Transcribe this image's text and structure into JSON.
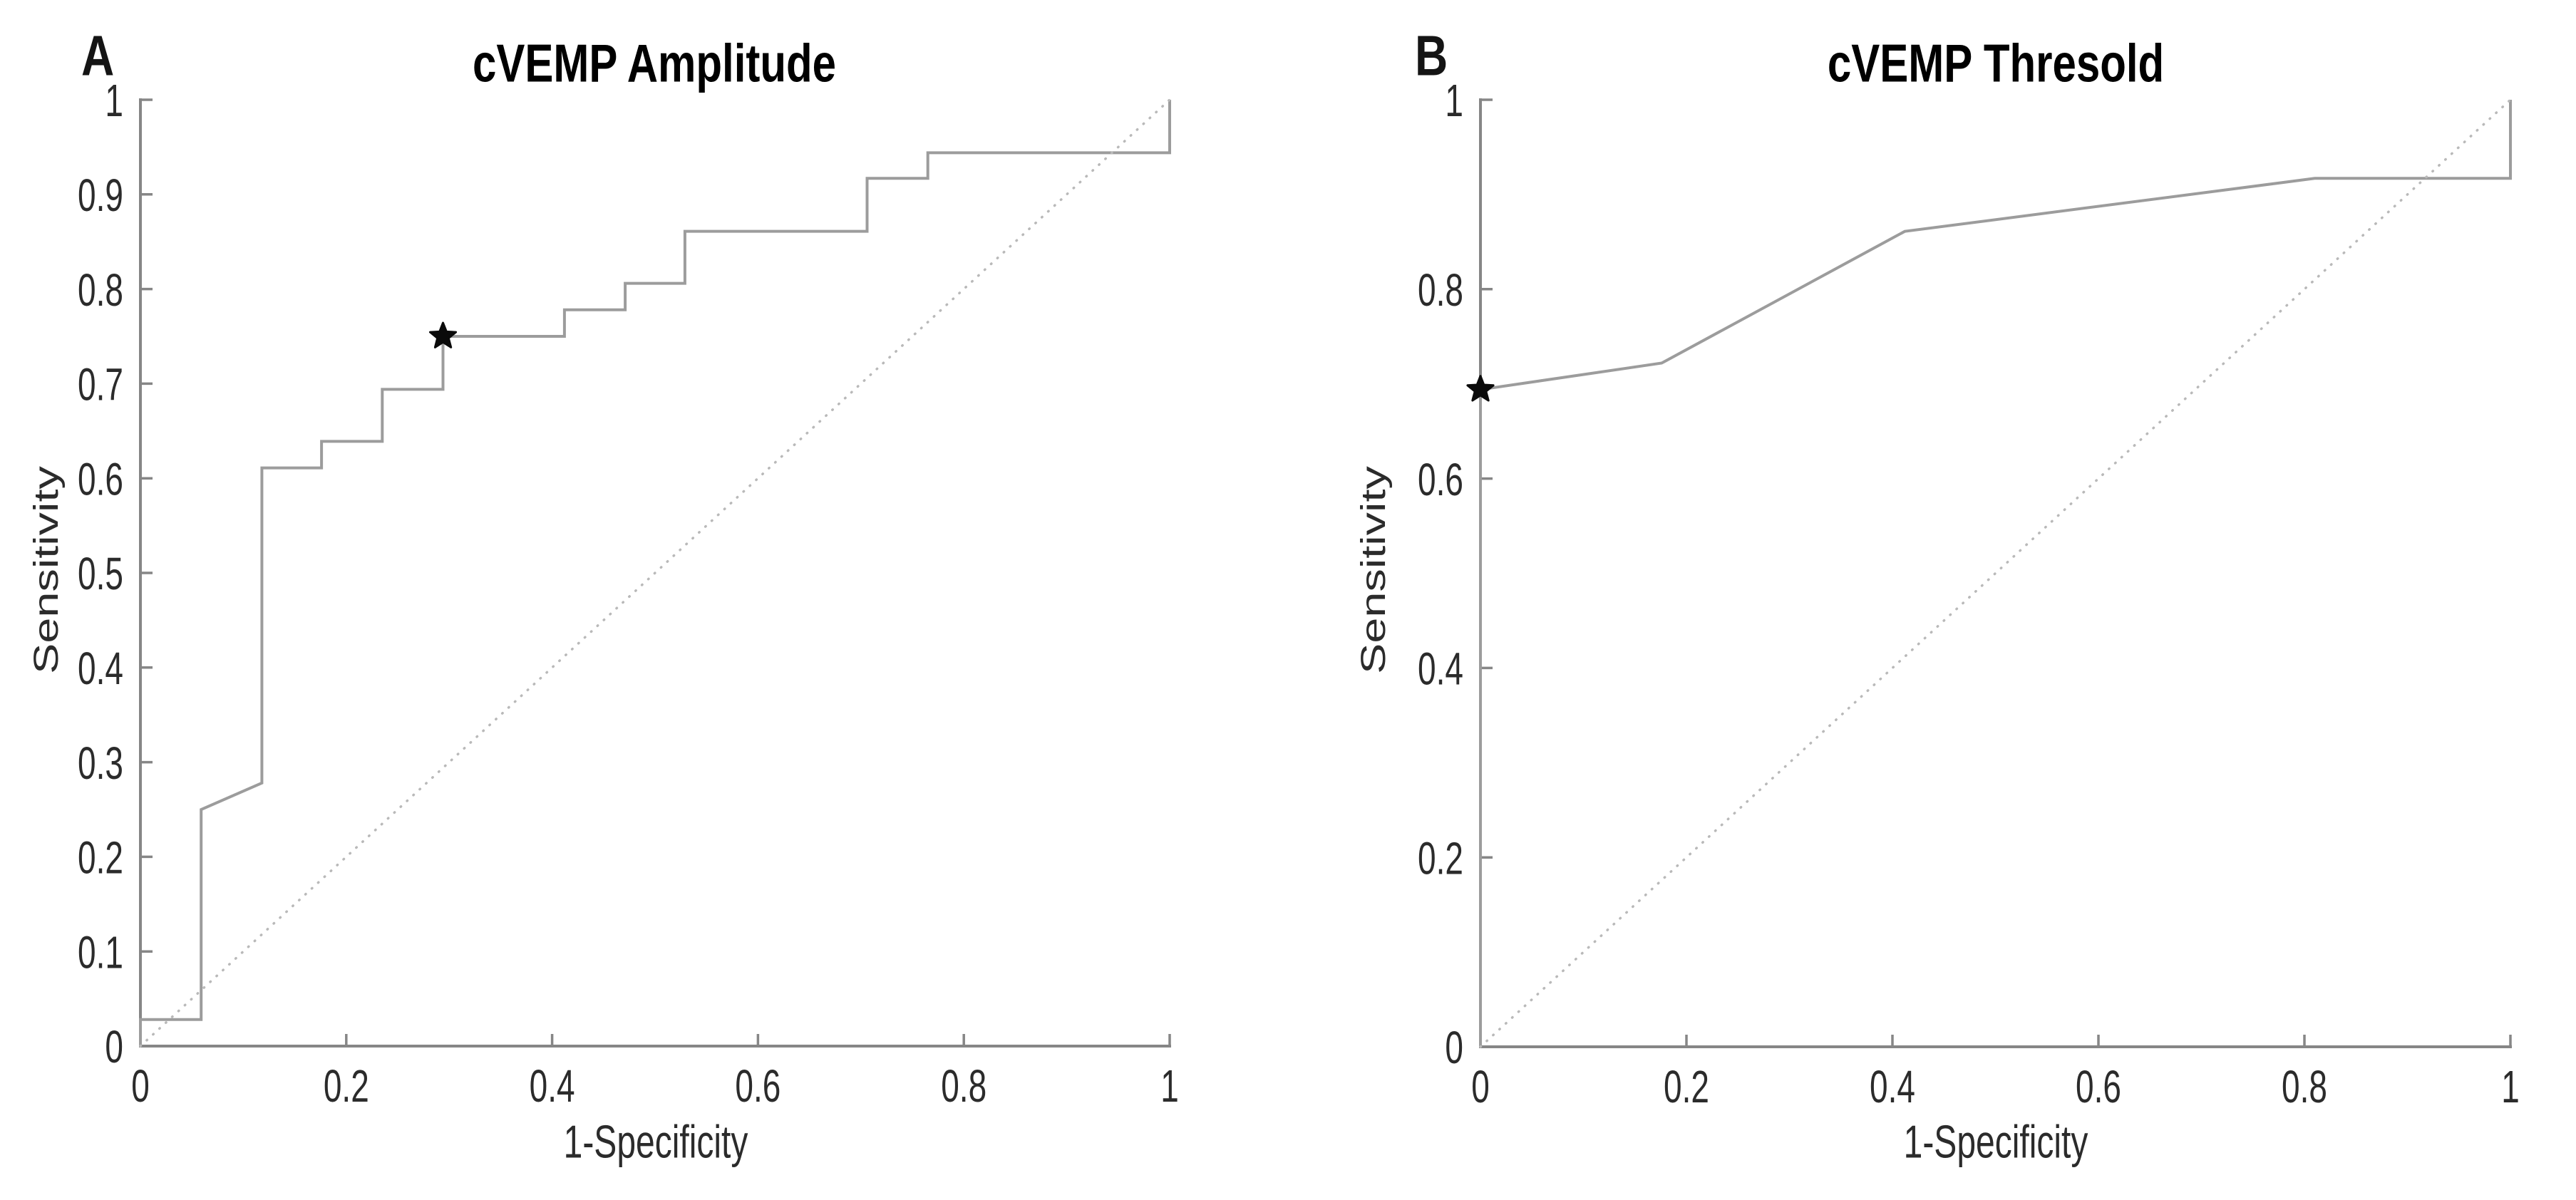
{
  "figure": {
    "background": "#ffffff"
  },
  "colors": {
    "roc_curve": "#9c9c9c",
    "chance_line": "#b9b9b9",
    "axis": "#868686",
    "tick_text": "#2b2b2b",
    "title_text": "#000000",
    "marker": "#0a0a0a"
  },
  "panels": [
    {
      "corner_label": "A",
      "title": "cVEMP Amplitude",
      "xlabel": "1-Specificity",
      "ylabel": "Sensitivity",
      "x_tick_labels": [
        "0",
        "0.2",
        "0.4",
        "0.6",
        "0.8",
        "1"
      ],
      "x_tick_values": [
        0,
        0.2,
        0.4,
        0.6,
        0.8,
        1
      ],
      "y_tick_labels": [
        "0",
        "0.1",
        "0.2",
        "0.3",
        "0.4",
        "0.5",
        "0.6",
        "0.7",
        "0.8",
        "0.9",
        "1"
      ],
      "y_tick_values": [
        0,
        0.1,
        0.2,
        0.3,
        0.4,
        0.5,
        0.6,
        0.7,
        0.8,
        0.9,
        1
      ]
    },
    {
      "corner_label": "B",
      "title": "cVEMP Thresold",
      "xlabel": "1-Specificity",
      "ylabel": "Sensitivity",
      "x_tick_labels": [
        "0",
        "0.2",
        "0.4",
        "0.6",
        "0.8",
        "1"
      ],
      "x_tick_values": [
        0,
        0.2,
        0.4,
        0.6,
        0.8,
        1
      ],
      "y_tick_labels": [
        "0",
        "0.2",
        "0.4",
        "0.6",
        "0.8",
        "1"
      ],
      "y_tick_values": [
        0,
        0.2,
        0.4,
        0.6,
        0.8,
        1
      ]
    }
  ],
  "chart_data": [
    {
      "type": "line",
      "subtype": "ROC step curve",
      "title": "cVEMP Amplitude",
      "xlabel": "1-Specificity",
      "ylabel": "Sensitivity",
      "xlim": [
        0,
        1
      ],
      "ylim": [
        0,
        1
      ],
      "grid": false,
      "legend": "none",
      "series": [
        {
          "name": "ROC curve",
          "line": "solid",
          "points": [
            [
              0,
              0
            ],
            [
              0,
              0.028
            ],
            [
              0.059,
              0.028
            ],
            [
              0.059,
              0.25
            ],
            [
              0.118,
              0.278
            ],
            [
              0.118,
              0.611
            ],
            [
              0.176,
              0.611
            ],
            [
              0.176,
              0.639
            ],
            [
              0.235,
              0.639
            ],
            [
              0.235,
              0.694
            ],
            [
              0.294,
              0.694
            ],
            [
              0.294,
              0.75
            ],
            [
              0.412,
              0.75
            ],
            [
              0.412,
              0.778
            ],
            [
              0.471,
              0.778
            ],
            [
              0.471,
              0.806
            ],
            [
              0.529,
              0.806
            ],
            [
              0.529,
              0.861
            ],
            [
              0.706,
              0.861
            ],
            [
              0.706,
              0.917
            ],
            [
              0.765,
              0.917
            ],
            [
              0.765,
              0.944
            ],
            [
              1,
              0.944
            ],
            [
              1,
              1
            ]
          ]
        },
        {
          "name": "chance diagonal",
          "line": "dotted",
          "points": [
            [
              0,
              0
            ],
            [
              1,
              1
            ]
          ]
        }
      ],
      "optimal_point": {
        "marker": "pentagram",
        "x": 0.294,
        "y": 0.75
      }
    },
    {
      "type": "line",
      "subtype": "ROC curve",
      "title": "cVEMP Thresold",
      "xlabel": "1-Specificity",
      "ylabel": "Sensitivity",
      "xlim": [
        0,
        1
      ],
      "ylim": [
        0,
        1
      ],
      "grid": false,
      "legend": "none",
      "series": [
        {
          "name": "ROC curve",
          "line": "solid",
          "points": [
            [
              0,
              0
            ],
            [
              0,
              0.694
            ],
            [
              0.176,
              0.722
            ],
            [
              0.412,
              0.861
            ],
            [
              0.81,
              0.917
            ],
            [
              1,
              0.917
            ],
            [
              1,
              1
            ]
          ]
        },
        {
          "name": "chance diagonal",
          "line": "dotted",
          "points": [
            [
              0,
              0
            ],
            [
              1,
              1
            ]
          ]
        }
      ],
      "optimal_point": {
        "marker": "pentagram",
        "x": 0,
        "y": 0.694
      }
    }
  ]
}
